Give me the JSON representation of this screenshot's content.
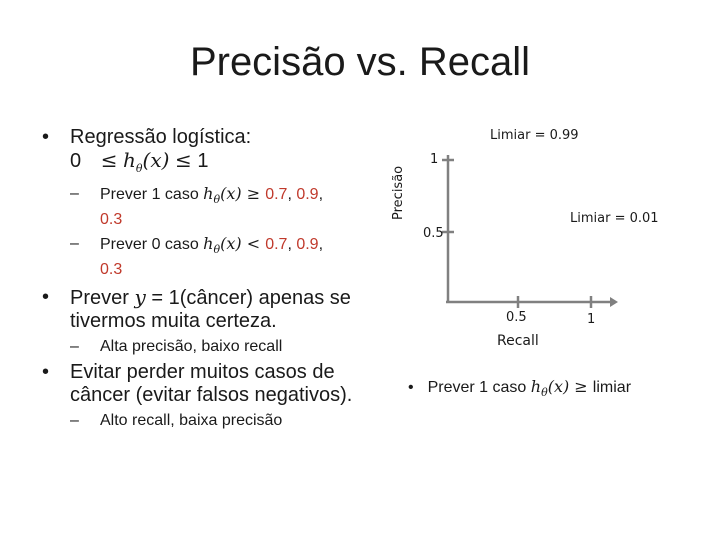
{
  "title": "Precisão vs. Recall",
  "bullets": {
    "b1": {
      "line1": "Regressão logística:",
      "ineq_left": "0",
      "ineq_rel": "≤",
      "ineq_h": "h",
      "ineq_sub": "θ",
      "ineq_arg": "(x)",
      "ineq_rel2": "≤",
      "ineq_right": "1",
      "sub1": {
        "text": "Prever 1 caso ",
        "h": "h",
        "sub": "θ",
        "arg": "(x)",
        "rel": " ≥ ",
        "v1": "0.7",
        "sep1": ", ",
        "v2": "0.9",
        "sep2": ",",
        "v3": "0.3"
      },
      "sub2": {
        "text": "Prever 0 caso ",
        "h": "h",
        "sub": "θ",
        "arg": "(x)",
        "rel": " < ",
        "v1": "0.7",
        "sep1": ", ",
        "v2": "0.9",
        "sep2": ",",
        "v3": "0.3"
      }
    },
    "b2": {
      "pre": "Prever ",
      "y": "y",
      "eq": " = 1(câncer) apenas se tivermos muita certeza.",
      "sub1": "Alta precisão, baixo recall"
    },
    "b3": {
      "text": "Evitar perder muitos casos de câncer (evitar falsos negativos).",
      "sub1": "Alto recall, baixa precisão"
    }
  },
  "chart_data": {
    "type": "line",
    "xlabel": "Recall",
    "ylabel": "Precisão",
    "x_ticks": [
      "0.5",
      "1"
    ],
    "y_ticks": [
      "1",
      "0.5"
    ],
    "xlim": [
      0,
      1
    ],
    "ylim": [
      0,
      1
    ],
    "annotations": [
      "Limiar = 0.99",
      "Limiar = 0.01"
    ],
    "series": []
  },
  "bottom_bullet": {
    "text": "Prever 1 caso ",
    "h": "h",
    "sub": "θ",
    "arg": "(x)",
    "rel": " ≥ ",
    "word": "limiar"
  },
  "colors": {
    "highlight": "#c0392b",
    "axis": "#808080",
    "text": "#1a1a1a"
  }
}
